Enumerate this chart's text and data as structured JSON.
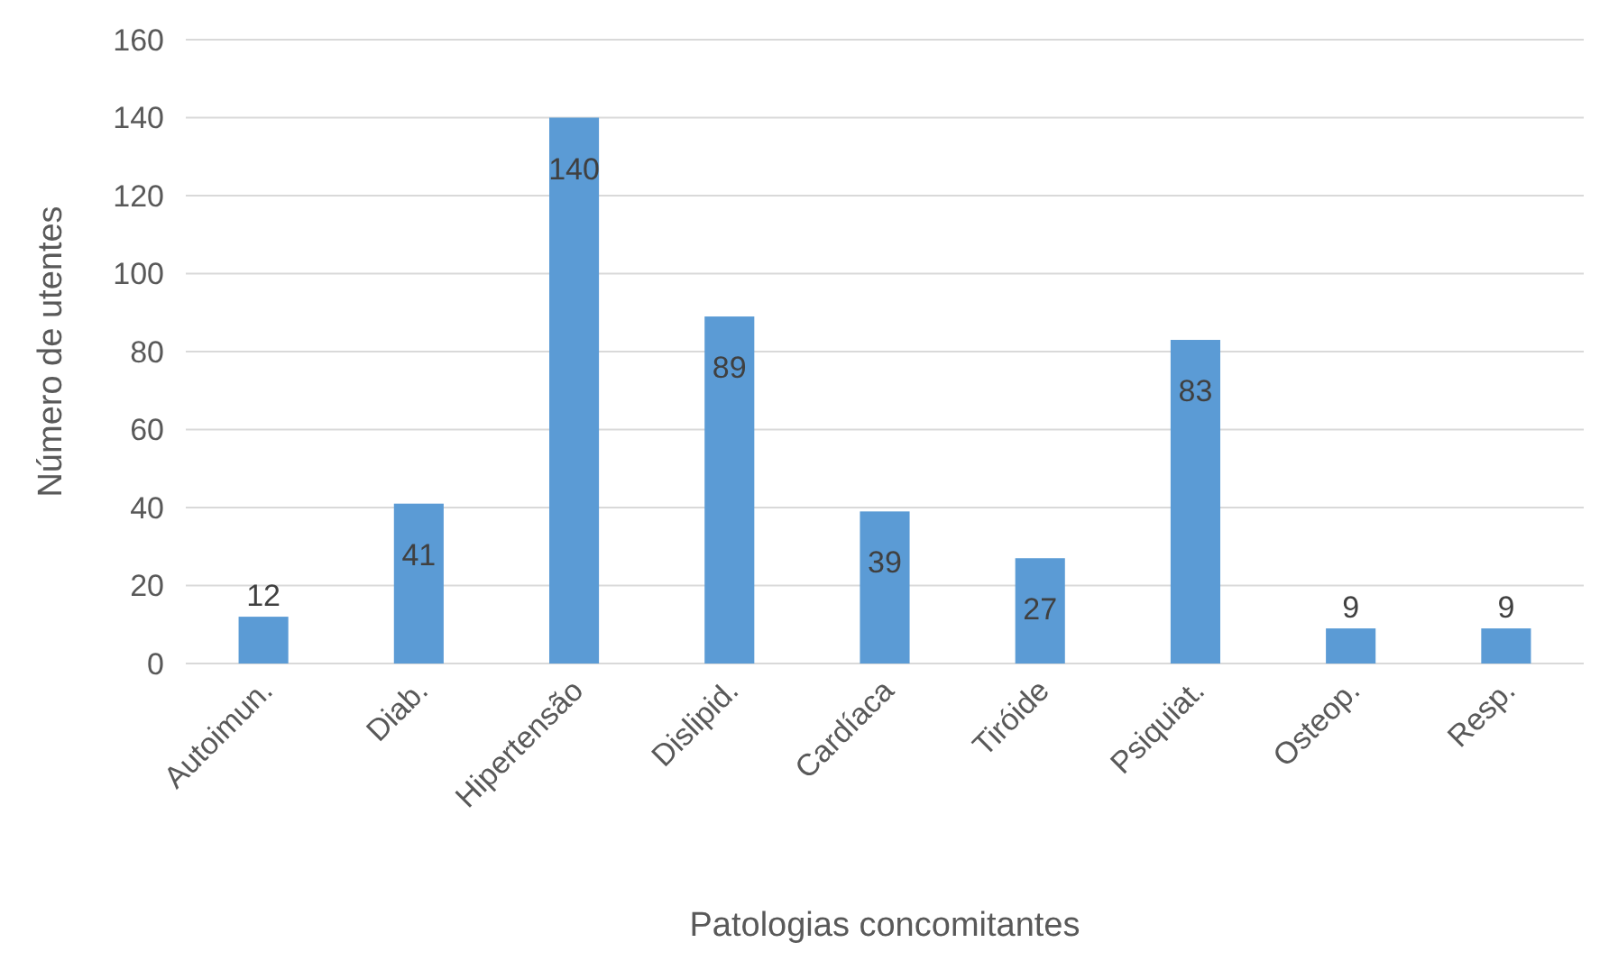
{
  "chart_data": {
    "type": "bar",
    "xlabel": "Patologias concomitantes",
    "ylabel": "Número de utentes",
    "categories": [
      "Autoimun.",
      "Diab.",
      "Hipertensão",
      "Dislipid.",
      "Cardíaca",
      "Tiróide",
      "Psiquiat.",
      "Osteop.",
      "Resp."
    ],
    "values": [
      12,
      41,
      140,
      89,
      39,
      27,
      83,
      9,
      9
    ],
    "color": "#5b9bd5",
    "ylim": [
      0,
      160
    ],
    "yticks": [
      0,
      20,
      40,
      60,
      80,
      100,
      120,
      140,
      160
    ],
    "grid": "y",
    "data_labels": true
  }
}
